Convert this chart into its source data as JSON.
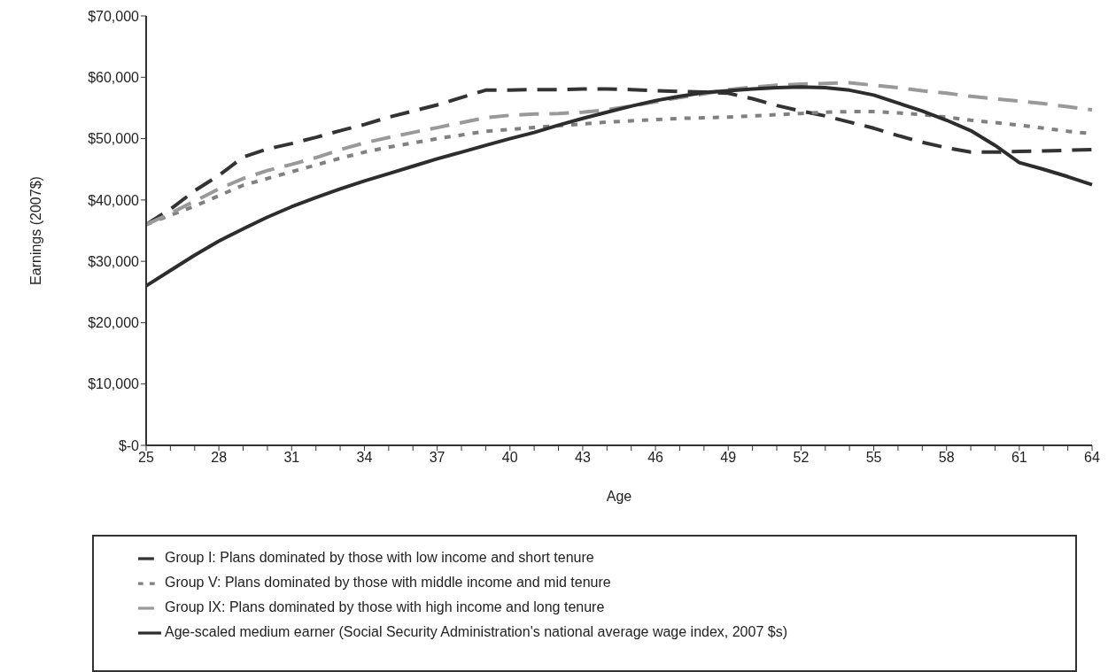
{
  "chart_data": {
    "type": "line",
    "xlabel": "Age",
    "ylabel": "Earnings (2007$)",
    "categories": [
      "25",
      null,
      null,
      "28",
      null,
      null,
      "31",
      null,
      null,
      "34",
      null,
      null,
      "37",
      null,
      null,
      "40",
      null,
      null,
      "43",
      null,
      null,
      "46",
      null,
      null,
      "49",
      null,
      null,
      "52",
      null,
      null,
      "55",
      null,
      null,
      "58",
      null,
      null,
      "61",
      null,
      null,
      "64"
    ],
    "ylim": [
      0,
      70000
    ],
    "yticks": [
      {
        "value": 0,
        "label": "$-0"
      },
      {
        "value": 10000,
        "label": "$10,000"
      },
      {
        "value": 20000,
        "label": "$20,000"
      },
      {
        "value": 30000,
        "label": "$30,000"
      },
      {
        "value": 40000,
        "label": "$40,000"
      },
      {
        "value": 50000,
        "label": "$50,000"
      },
      {
        "value": 60000,
        "label": "$60,000"
      },
      {
        "value": 70000,
        "label": "$70,000"
      }
    ],
    "legend": "bottom",
    "series": [
      {
        "name": "Group I: Plans dominated by those with low income and short tenure",
        "color": "#333333",
        "line_style": "dashed",
        "values": [
          36000,
          38500,
          41500,
          44000,
          47000,
          48300,
          49200,
          50200,
          51300,
          52300,
          53500,
          54500,
          55500,
          56700,
          57900,
          57900,
          58000,
          58000,
          58100,
          58100,
          58000,
          57800,
          57700,
          57600,
          57400,
          56500,
          55400,
          54500,
          53700,
          52700,
          51700,
          50500,
          49400,
          48500,
          47800,
          47800,
          47900,
          48000,
          48100,
          48200
        ]
      },
      {
        "name": "Group V: Plans dominated by those with middle income and mid tenure",
        "color": "#808080",
        "line_style": "dotted",
        "values": [
          36000,
          37500,
          39000,
          40700,
          42400,
          43500,
          44600,
          45700,
          46800,
          47800,
          48600,
          49300,
          50000,
          50600,
          51200,
          51500,
          51800,
          52100,
          52400,
          52700,
          52900,
          53100,
          53300,
          53400,
          53500,
          53700,
          53900,
          54100,
          54300,
          54400,
          54400,
          54200,
          53900,
          53500,
          53000,
          52600,
          52200,
          51700,
          51200,
          50800
        ]
      },
      {
        "name": "Group IX: Plans dominated by those with high income and long tenure",
        "color": "#999999",
        "line_style": "dashed",
        "values": [
          36000,
          37800,
          39800,
          41800,
          43500,
          44800,
          45800,
          46900,
          48200,
          49300,
          50200,
          51000,
          51800,
          52600,
          53400,
          53800,
          54000,
          54100,
          54300,
          54700,
          55300,
          56000,
          56700,
          57300,
          58000,
          58400,
          58700,
          58900,
          59000,
          59100,
          58700,
          58300,
          57800,
          57400,
          56900,
          56500,
          56100,
          55700,
          55200,
          54700
        ]
      },
      {
        "name": "Age-scaled medium earner (Social Security Administration's national average wage index, 2007 $s)",
        "color": "#2d2d2d",
        "line_style": "solid",
        "values": [
          26000,
          28500,
          31000,
          33300,
          35300,
          37200,
          38900,
          40400,
          41800,
          43100,
          44300,
          45500,
          46700,
          47800,
          48900,
          50000,
          51000,
          52200,
          53300,
          54300,
          55300,
          56200,
          56900,
          57500,
          57800,
          58100,
          58300,
          58400,
          58300,
          57900,
          57100,
          55800,
          54500,
          53000,
          51300,
          48900,
          46100,
          45000,
          43800,
          42500
        ]
      }
    ]
  }
}
